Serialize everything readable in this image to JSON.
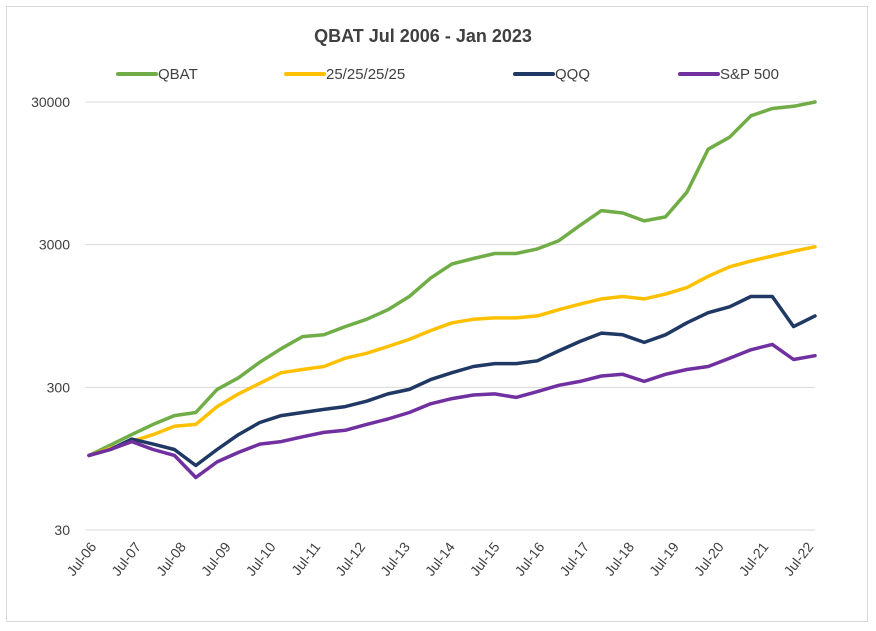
{
  "chart_data": {
    "type": "line",
    "title": "QBAT  Jul 2006 - Jan 2023",
    "yscale": "log",
    "ylim": [
      30,
      32000
    ],
    "yticks": [
      30,
      300,
      3000,
      30000
    ],
    "ytick_labels": [
      "30",
      "300",
      "3000",
      "30000"
    ],
    "xticks": [
      "Jul-06",
      "Jul-07",
      "Jul-08",
      "Jul-09",
      "Jul-10",
      "Jul-11",
      "Jul-12",
      "Jul-13",
      "Jul-14",
      "Jul-15",
      "Jul-16",
      "Jul-17",
      "Jul-18",
      "Jul-19",
      "Jul-20",
      "Jul-21",
      "Jul-22"
    ],
    "grid": true,
    "legend": "top",
    "x": [
      "Jul-06",
      "Jan-07",
      "Jul-07",
      "Jan-08",
      "Jul-08",
      "Nov-08",
      "Mar-09",
      "Jul-09",
      "Jan-10",
      "Jul-10",
      "Jan-11",
      "Jul-11",
      "Jan-12",
      "Jul-12",
      "Jan-13",
      "Jul-13",
      "Jan-14",
      "Jul-14",
      "Jan-15",
      "Jul-15",
      "Jan-16",
      "Jul-16",
      "Jan-17",
      "Jul-17",
      "Jan-18",
      "Jul-18",
      "Jan-19",
      "Jul-19",
      "Jan-20",
      "Jul-20",
      "Jan-21",
      "Jul-21",
      "Jan-22",
      "Jul-22",
      "Jan-23"
    ],
    "series": [
      {
        "name": "QBAT",
        "color": "#70ad47",
        "values": [
          100,
          118,
          140,
          165,
          190,
          200,
          290,
          350,
          450,
          560,
          680,
          700,
          800,
          900,
          1050,
          1300,
          1750,
          2200,
          2400,
          2600,
          2600,
          2800,
          3200,
          4100,
          5200,
          5000,
          4400,
          4700,
          7000,
          14000,
          17000,
          24000,
          27000,
          28000,
          30000
        ]
      },
      {
        "name": "25/25/25/25",
        "color": "#ffc000",
        "values": [
          100,
          112,
          125,
          140,
          160,
          165,
          220,
          270,
          320,
          380,
          400,
          420,
          480,
          520,
          580,
          650,
          750,
          850,
          900,
          920,
          920,
          950,
          1050,
          1150,
          1250,
          1300,
          1250,
          1350,
          1500,
          1800,
          2100,
          2300,
          2500,
          2700,
          2900
        ]
      },
      {
        "name": "QQQ",
        "color": "#203864",
        "values": [
          100,
          110,
          130,
          120,
          110,
          85,
          110,
          140,
          170,
          190,
          200,
          210,
          220,
          240,
          270,
          290,
          340,
          380,
          420,
          440,
          440,
          460,
          540,
          630,
          720,
          700,
          620,
          700,
          850,
          1000,
          1100,
          1300,
          1300,
          800,
          950
        ]
      },
      {
        "name": "S&P 500",
        "color": "#7030a0",
        "values": [
          100,
          110,
          125,
          110,
          100,
          70,
          90,
          105,
          120,
          125,
          135,
          145,
          150,
          165,
          180,
          200,
          230,
          250,
          265,
          270,
          255,
          280,
          310,
          330,
          360,
          370,
          330,
          370,
          400,
          420,
          480,
          550,
          600,
          470,
          500
        ]
      }
    ]
  }
}
